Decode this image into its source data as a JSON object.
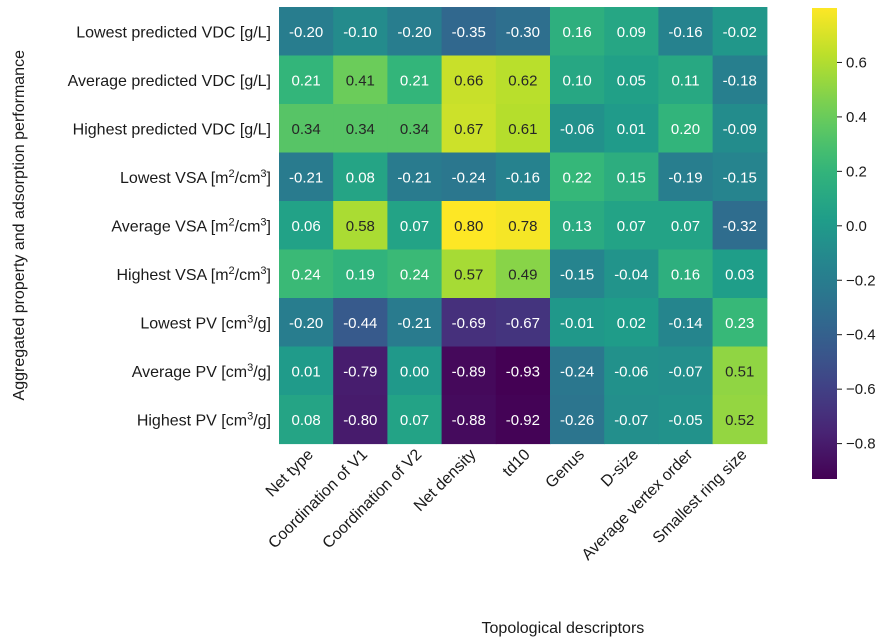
{
  "chart_data": {
    "type": "heatmap",
    "title": "",
    "xlabel": "Topological descriptors",
    "ylabel": "Aggregated property and adsorption performance",
    "columns": [
      "Net type",
      "Coordination of V1",
      "Coordination of V2",
      "Net density",
      "td10",
      "Genus",
      "D-size",
      "Average vertex order",
      "Smallest ring size"
    ],
    "rows": [
      {
        "label": "Lowest predicted VDC [g/L]",
        "pre": "Lowest predicted VDC [g/L]"
      },
      {
        "label": "Average predicted VDC [g/L]",
        "pre": "Average predicted VDC [g/L]"
      },
      {
        "label": "Highest predicted VDC [g/L]",
        "pre": "Highest predicted VDC [g/L]"
      },
      {
        "label": "Lowest VSA [m2/cm3]",
        "pre": "Lowest VSA [m",
        "sup1": "2",
        "mid": "/cm",
        "sup2": "3",
        "post": "]"
      },
      {
        "label": "Average VSA [m2/cm3]",
        "pre": "Average VSA [m",
        "sup1": "2",
        "mid": "/cm",
        "sup2": "3",
        "post": "]"
      },
      {
        "label": "Highest VSA [m2/cm3]",
        "pre": "Highest VSA [m",
        "sup1": "2",
        "mid": "/cm",
        "sup2": "3",
        "post": "]"
      },
      {
        "label": "Lowest PV [cm3/g]",
        "pre": "Lowest PV [cm",
        "sup1": "3",
        "mid": "/g]"
      },
      {
        "label": "Average PV [cm3/g]",
        "pre": "Average PV [cm",
        "sup1": "3",
        "mid": "/g]"
      },
      {
        "label": "Highest PV [cm3/g]",
        "pre": "Highest PV [cm",
        "sup1": "3",
        "mid": "/g]"
      }
    ],
    "values": [
      [
        -0.2,
        -0.1,
        -0.2,
        -0.35,
        -0.3,
        0.16,
        0.09,
        -0.16,
        -0.02
      ],
      [
        0.21,
        0.41,
        0.21,
        0.66,
        0.62,
        0.1,
        0.05,
        0.11,
        -0.18
      ],
      [
        0.34,
        0.34,
        0.34,
        0.67,
        0.61,
        -0.06,
        0.01,
        0.2,
        -0.09
      ],
      [
        -0.21,
        0.08,
        -0.21,
        -0.24,
        -0.16,
        0.22,
        0.15,
        -0.19,
        -0.15
      ],
      [
        0.06,
        0.58,
        0.07,
        0.8,
        0.78,
        0.13,
        0.07,
        0.07,
        -0.32
      ],
      [
        0.24,
        0.19,
        0.24,
        0.57,
        0.49,
        -0.15,
        -0.04,
        0.16,
        0.03
      ],
      [
        -0.2,
        -0.44,
        -0.21,
        -0.69,
        -0.67,
        -0.01,
        0.02,
        -0.14,
        0.23
      ],
      [
        0.01,
        -0.79,
        0.0,
        -0.89,
        -0.93,
        -0.24,
        -0.06,
        -0.07,
        0.51
      ],
      [
        0.08,
        -0.8,
        0.07,
        -0.88,
        -0.92,
        -0.26,
        -0.07,
        -0.05,
        0.52
      ]
    ],
    "colormap": "viridis",
    "vmin": -0.93,
    "vmax": 0.8,
    "colorbar_ticks": [
      0.6,
      0.4,
      0.2,
      0.0,
      -0.2,
      -0.4,
      -0.6,
      -0.8
    ],
    "colorbar_tick_labels": [
      "0.6",
      "0.4",
      "0.2",
      "0.0",
      "−0.2",
      "−0.4",
      "−0.6",
      "−0.8"
    ],
    "annotations": "cell values shown with 2 decimals",
    "grid": false,
    "legend": "colorbar-right"
  }
}
